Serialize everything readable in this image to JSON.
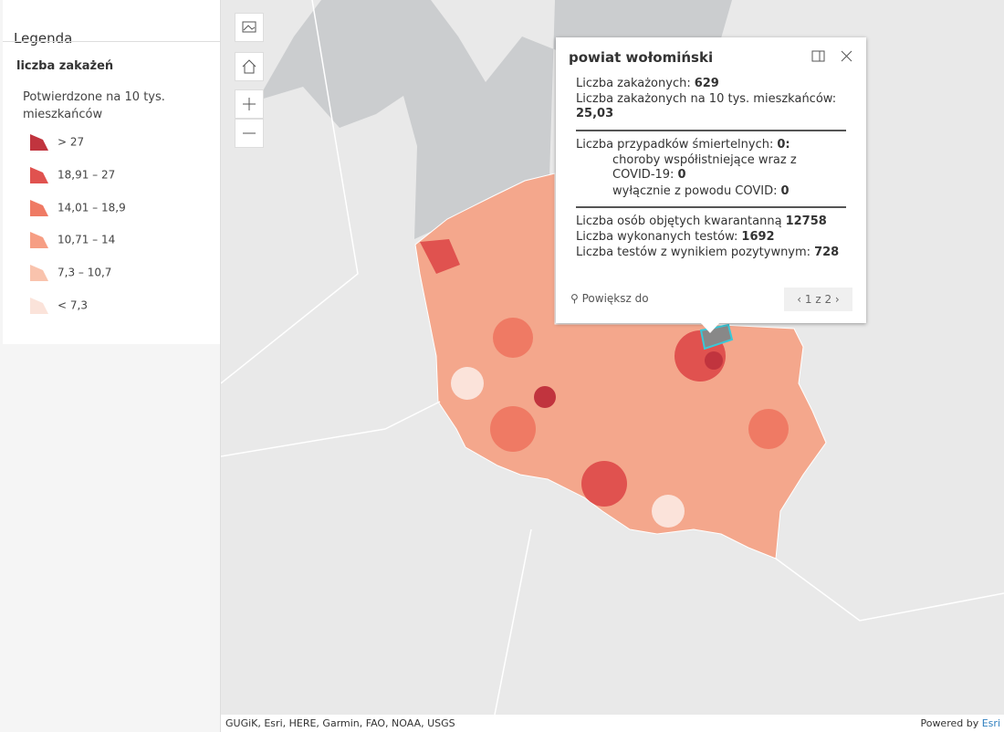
{
  "legend": {
    "title": "Legenda",
    "layer": "liczba zakażeń",
    "field": "Potwierdzone na 10 tys. mieszkańców",
    "items": [
      {
        "label": "> 27",
        "color": "#c1343e"
      },
      {
        "label": "18,91 – 27",
        "color": "#e0524f"
      },
      {
        "label": "14,01 – 18,9",
        "color": "#ef7a64"
      },
      {
        "label": "10,71 – 14",
        "color": "#f69e84"
      },
      {
        "label": "7,3 – 10,7",
        "color": "#f9c3ad"
      },
      {
        "label": "< 7,3",
        "color": "#fbe3da"
      }
    ]
  },
  "popup": {
    "title": "powiat wołomiński",
    "lines": [
      {
        "label": "Liczba zakażonych:",
        "value": "629"
      },
      {
        "label": "Liczba zakażonych na 10 tys. mieszkańców:",
        "value": "25,03"
      },
      {
        "label": "Liczba przypadków śmiertelnych:",
        "value": "0:"
      },
      {
        "label": "choroby współistniejące wraz z COVID-19:",
        "value": "0"
      },
      {
        "label": "wyłącznie z powodu COVID:",
        "value": "0"
      },
      {
        "label": "Liczba osób objętych kwarantanną",
        "value": "12758"
      },
      {
        "label": "Liczba wykonanych testów:",
        "value": "1692"
      },
      {
        "label": "Liczba testów z wynikiem pozytywnym:",
        "value": "728"
      }
    ],
    "zoom": "Powiększ do",
    "pager": "1 z 2"
  },
  "attribution": "GUGiK, Esri, HERE, Garmin, FAO, NOAA, USGS",
  "powered": {
    "text": "Powered by",
    "link": "Esri"
  }
}
